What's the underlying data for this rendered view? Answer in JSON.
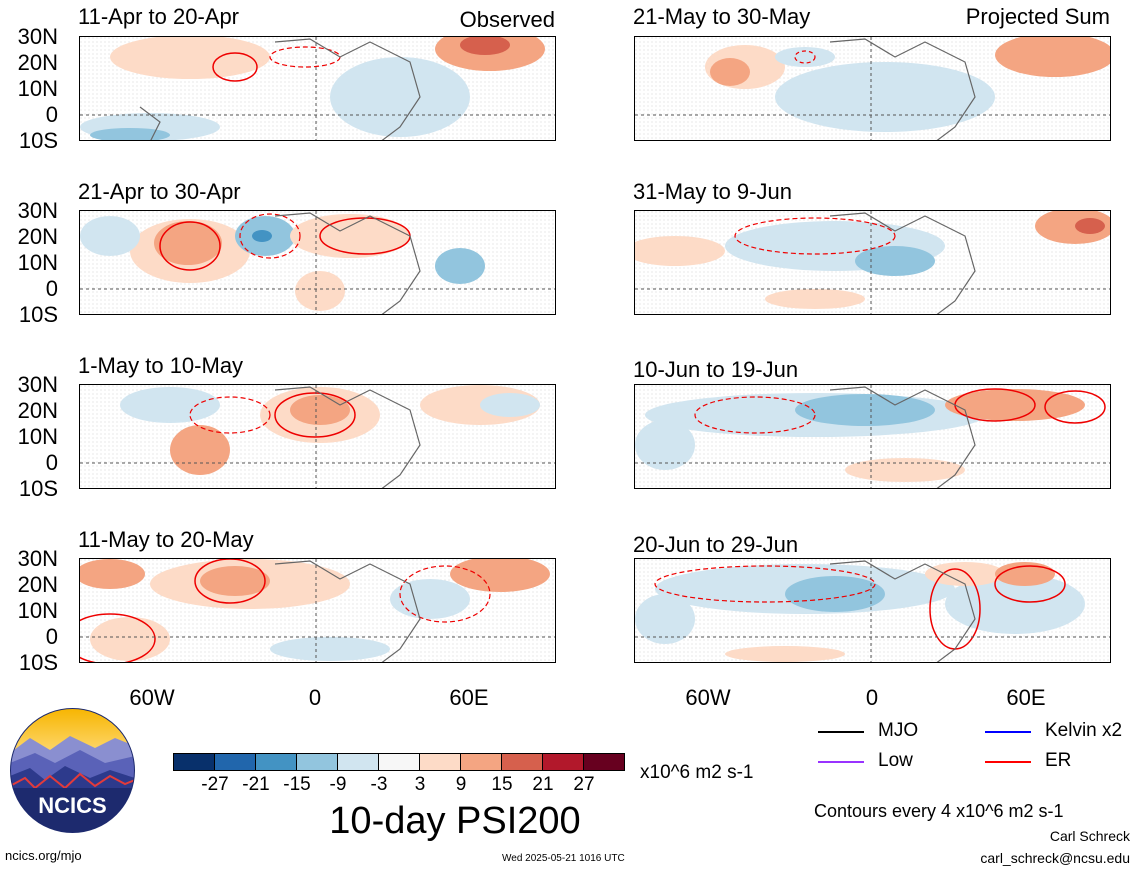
{
  "header": {
    "left_tag": "Observed",
    "right_tag": "Projected Sum"
  },
  "left_panels": [
    {
      "title": "11-Apr to 20-Apr"
    },
    {
      "title": "21-Apr to 30-Apr"
    },
    {
      "title": "1-May to 10-May"
    },
    {
      "title": "11-May to 20-May"
    }
  ],
  "right_panels": [
    {
      "title": "21-May to 30-May"
    },
    {
      "title": "31-May to 9-Jun"
    },
    {
      "title": "10-Jun to 19-Jun"
    },
    {
      "title": "20-Jun to 29-Jun"
    }
  ],
  "latitude_labels": [
    "30N",
    "20N",
    "10N",
    "0",
    "10S"
  ],
  "longitude_labels": [
    "60W",
    "0",
    "60E"
  ],
  "colorbar": {
    "ticks": [
      "-27",
      "-21",
      "-15",
      "-9",
      "-3",
      "3",
      "9",
      "15",
      "21",
      "27"
    ],
    "colors": [
      "#08306b",
      "#2166ac",
      "#4393c3",
      "#92c5de",
      "#d1e5f0",
      "#f7f7f7",
      "#fddbc7",
      "#f4a582",
      "#d6604d",
      "#b2182b",
      "#67001f"
    ],
    "units": "x10^6 m2 s-1"
  },
  "logo_text": "NCICS",
  "main_title": "10-day PSI200",
  "legend": {
    "mjo": "MJO",
    "mjo_color": "#000000",
    "low": "Low",
    "low_color": "#9933ff",
    "kelvin": "Kelvin x2",
    "kelvin_color": "#0000ff",
    "er": "ER",
    "er_color": "#ff0000"
  },
  "contour_note": "Contours every 4 x10^6 m2 s-1",
  "footer": {
    "url": "ncics.org/mjo",
    "timestamp": "Wed 2025-05-21 1016 UTC",
    "author": "Carl Schreck",
    "email": "carl_schreck@ncsu.edu"
  }
}
